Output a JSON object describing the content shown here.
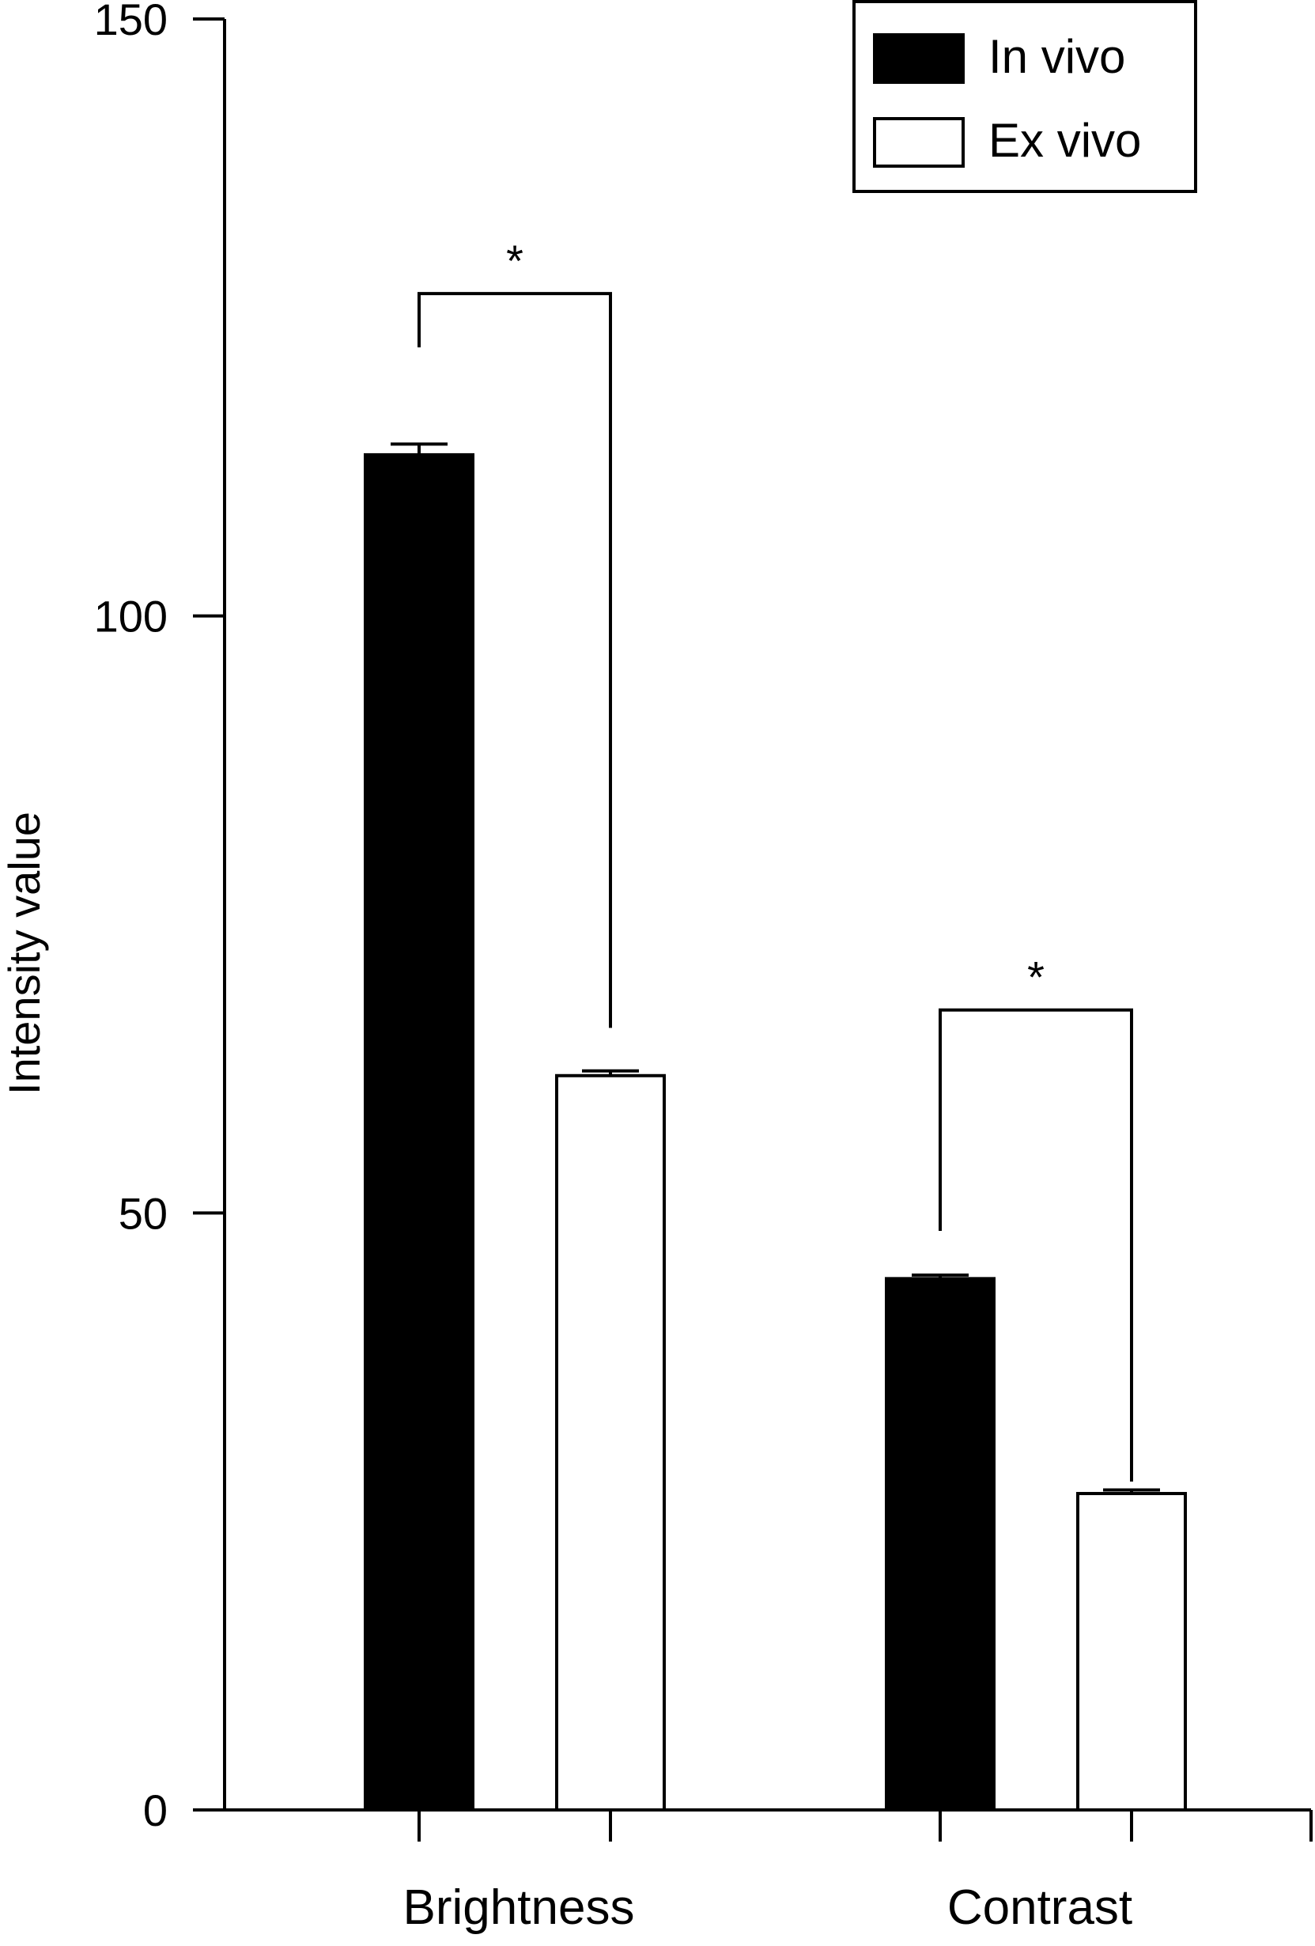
{
  "chart_data": {
    "type": "bar",
    "title": "",
    "xlabel": "",
    "ylabel": "Intensity value",
    "ylim": [
      0,
      150
    ],
    "yticks": [
      0,
      50,
      100,
      150
    ],
    "grid": false,
    "legend_position": "top-right",
    "categories": [
      "Brightness",
      "Contrast"
    ],
    "series": [
      {
        "name": "In vivo",
        "color": "#000000",
        "fill": "#000000",
        "values": [
          113.5,
          44.5
        ],
        "errors": [
          0.9,
          0.3
        ]
      },
      {
        "name": "Ex vivo",
        "color": "#000000",
        "fill": "#ffffff",
        "values": [
          61.5,
          26.5
        ],
        "errors": [
          0.4,
          0.3
        ]
      }
    ],
    "annotations": [
      {
        "type": "significance",
        "category": "Brightness",
        "label": "*",
        "bracket_y": 127,
        "left_drop_to": 122.5,
        "right_drop_to": 65.5
      },
      {
        "type": "significance",
        "category": "Contrast",
        "label": "*",
        "bracket_y": 67,
        "left_drop_to": 48.5,
        "right_drop_to": 27.5
      }
    ]
  }
}
